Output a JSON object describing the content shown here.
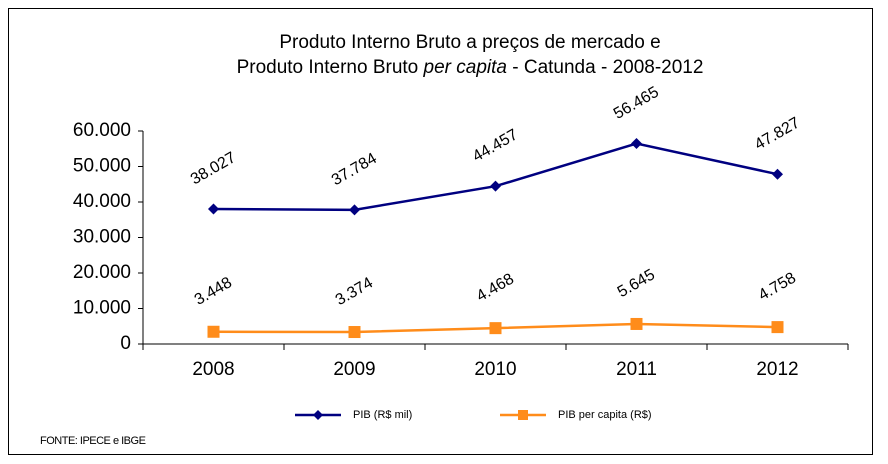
{
  "chart_data": {
    "type": "line",
    "title": [
      "Produto Interno Bruto a preços de mercado  e",
      [
        "Produto Interno Bruto ",
        "per capita",
        " - Catunda - 2008-2012"
      ]
    ],
    "categories": [
      "2008",
      "2009",
      "2010",
      "2011",
      "2012"
    ],
    "series": [
      {
        "name": "PIB (R$ mil)",
        "color": "#000080",
        "marker": "diamond",
        "values": [
          38027,
          37784,
          44457,
          56465,
          47827
        ],
        "value_labels": [
          "38.027",
          "37.784",
          "44.457",
          "56.465",
          "47.827"
        ]
      },
      {
        "name": "PIB per capita (R$)",
        "color": "#ff8c1a",
        "marker": "square",
        "values": [
          3448,
          3374,
          4468,
          5645,
          4758
        ],
        "value_labels": [
          "3.448",
          "3.374",
          "4.468",
          "5.645",
          "4.758"
        ]
      }
    ],
    "ylim": [
      0,
      60000
    ],
    "yticks": [
      0,
      {
        "value": 10000,
        "label": "10.000"
      },
      {
        "value": 20000,
        "label": "20.000"
      },
      {
        "value": 30000,
        "label": "30.000"
      },
      {
        "value": 40000,
        "label": "40.000"
      },
      {
        "value": 50000,
        "label": "50.000"
      },
      {
        "value": 60000,
        "label": "60.000"
      }
    ],
    "grid": false,
    "legend": "bottom",
    "source": "FONTE: IPECE e IBGE"
  }
}
